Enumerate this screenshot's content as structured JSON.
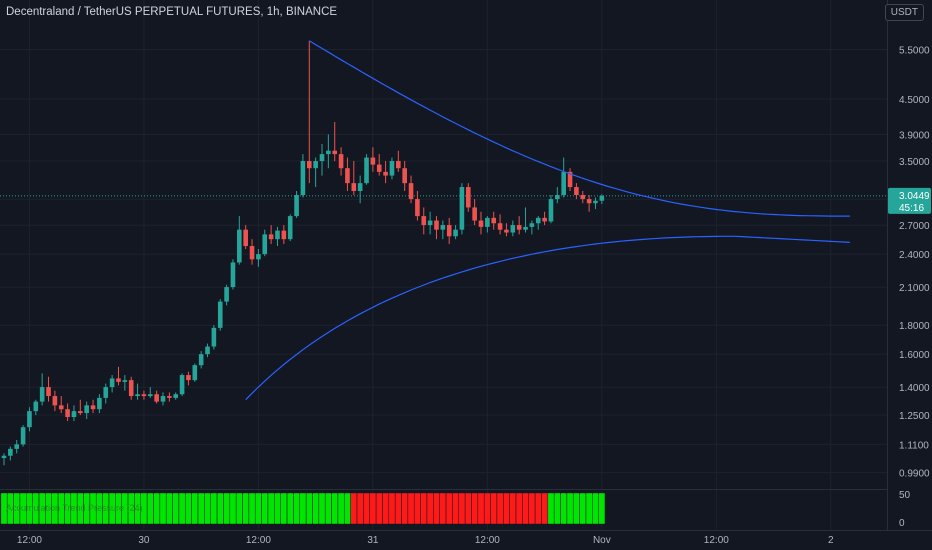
{
  "header": {
    "title": "Decentraland / TetherUS PERPETUAL FUTURES, 1h, BINANCE",
    "currency_badge": "USDT"
  },
  "price_label": {
    "price": "3.0449",
    "countdown": "45:16"
  },
  "indicator": {
    "label": "Accumulation Trend Pressure (24)",
    "axis_ticks": [
      "50",
      "0"
    ]
  },
  "colors": {
    "background": "#131722",
    "up": "#26a69a",
    "down": "#ef5350",
    "curve": "#2962ff",
    "hist_green": "#00e600",
    "hist_red": "#ff1a1a",
    "price_line": "#26a69a"
  },
  "chart_data": {
    "type": "candlestick",
    "title": "Decentraland / TetherUS PERPETUAL FUTURES, 1h, BINANCE",
    "y_scale": "log",
    "ylim": [
      0.93,
      6.2
    ],
    "y_ticks": [
      "5.5000",
      "4.5000",
      "3.9000",
      "3.5000",
      "3.0000",
      "2.7000",
      "2.4000",
      "2.1000",
      "1.8000",
      "1.6000",
      "1.4000",
      "1.2500",
      "1.1100",
      "0.9900"
    ],
    "x_tick_labels": [
      {
        "label": "12:00",
        "index": 4
      },
      {
        "label": "30",
        "index": 22
      },
      {
        "label": "12:00",
        "index": 40
      },
      {
        "label": "31",
        "index": 58
      },
      {
        "label": "12:00",
        "index": 76
      },
      {
        "label": "Nov",
        "index": 94
      },
      {
        "label": "12:00",
        "index": 112
      },
      {
        "label": "2",
        "index": 130
      }
    ],
    "candles": [
      [
        1.05,
        1.07,
        1.02,
        1.06
      ],
      [
        1.06,
        1.1,
        1.04,
        1.09
      ],
      [
        1.09,
        1.13,
        1.07,
        1.11
      ],
      [
        1.11,
        1.2,
        1.1,
        1.19
      ],
      [
        1.19,
        1.29,
        1.17,
        1.27
      ],
      [
        1.27,
        1.33,
        1.25,
        1.32
      ],
      [
        1.32,
        1.48,
        1.3,
        1.4
      ],
      [
        1.4,
        1.46,
        1.32,
        1.35
      ],
      [
        1.35,
        1.38,
        1.27,
        1.3
      ],
      [
        1.3,
        1.35,
        1.26,
        1.28
      ],
      [
        1.28,
        1.31,
        1.22,
        1.24
      ],
      [
        1.24,
        1.3,
        1.22,
        1.27
      ],
      [
        1.27,
        1.33,
        1.25,
        1.26
      ],
      [
        1.26,
        1.32,
        1.23,
        1.3
      ],
      [
        1.3,
        1.33,
        1.26,
        1.28
      ],
      [
        1.28,
        1.36,
        1.26,
        1.34
      ],
      [
        1.34,
        1.42,
        1.31,
        1.4
      ],
      [
        1.4,
        1.47,
        1.37,
        1.45
      ],
      [
        1.45,
        1.52,
        1.41,
        1.43
      ],
      [
        1.43,
        1.47,
        1.38,
        1.44
      ],
      [
        1.44,
        1.46,
        1.33,
        1.35
      ],
      [
        1.35,
        1.42,
        1.33,
        1.36
      ],
      [
        1.36,
        1.38,
        1.33,
        1.35
      ],
      [
        1.35,
        1.4,
        1.34,
        1.36
      ],
      [
        1.36,
        1.38,
        1.31,
        1.32
      ],
      [
        1.32,
        1.37,
        1.3,
        1.35
      ],
      [
        1.35,
        1.37,
        1.32,
        1.34
      ],
      [
        1.34,
        1.37,
        1.33,
        1.36
      ],
      [
        1.36,
        1.48,
        1.35,
        1.47
      ],
      [
        1.47,
        1.49,
        1.41,
        1.44
      ],
      [
        1.44,
        1.54,
        1.43,
        1.53
      ],
      [
        1.53,
        1.62,
        1.51,
        1.6
      ],
      [
        1.6,
        1.67,
        1.58,
        1.65
      ],
      [
        1.65,
        1.8,
        1.63,
        1.78
      ],
      [
        1.78,
        2.0,
        1.76,
        1.98
      ],
      [
        1.98,
        2.12,
        1.95,
        2.1
      ],
      [
        2.1,
        2.35,
        2.08,
        2.32
      ],
      [
        2.32,
        2.8,
        2.3,
        2.65
      ],
      [
        2.65,
        2.7,
        2.45,
        2.48
      ],
      [
        2.48,
        2.55,
        2.3,
        2.35
      ],
      [
        2.35,
        2.45,
        2.28,
        2.4
      ],
      [
        2.4,
        2.65,
        2.38,
        2.6
      ],
      [
        2.6,
        2.7,
        2.5,
        2.55
      ],
      [
        2.55,
        2.68,
        2.48,
        2.64
      ],
      [
        2.64,
        2.7,
        2.5,
        2.55
      ],
      [
        2.55,
        2.82,
        2.53,
        2.8
      ],
      [
        2.8,
        3.1,
        2.78,
        3.05
      ],
      [
        3.05,
        3.6,
        3.02,
        3.5
      ],
      [
        3.5,
        5.7,
        3.2,
        3.4
      ],
      [
        3.4,
        3.55,
        3.15,
        3.5
      ],
      [
        3.5,
        3.75,
        3.3,
        3.6
      ],
      [
        3.6,
        3.9,
        3.4,
        3.65
      ],
      [
        3.65,
        4.1,
        3.5,
        3.6
      ],
      [
        3.6,
        3.7,
        3.3,
        3.4
      ],
      [
        3.4,
        3.55,
        3.1,
        3.2
      ],
      [
        3.2,
        3.5,
        3.05,
        3.1
      ],
      [
        3.1,
        3.3,
        2.95,
        3.2
      ],
      [
        3.2,
        3.6,
        3.18,
        3.55
      ],
      [
        3.55,
        3.7,
        3.35,
        3.45
      ],
      [
        3.45,
        3.6,
        3.3,
        3.35
      ],
      [
        3.35,
        3.5,
        3.2,
        3.3
      ],
      [
        3.3,
        3.55,
        3.25,
        3.5
      ],
      [
        3.5,
        3.65,
        3.35,
        3.4
      ],
      [
        3.4,
        3.5,
        3.1,
        3.2
      ],
      [
        3.2,
        3.3,
        2.95,
        3.0
      ],
      [
        3.0,
        3.1,
        2.75,
        2.8
      ],
      [
        2.8,
        2.9,
        2.6,
        2.7
      ],
      [
        2.7,
        2.85,
        2.6,
        2.75
      ],
      [
        2.75,
        2.8,
        2.55,
        2.65
      ],
      [
        2.65,
        2.75,
        2.55,
        2.7
      ],
      [
        2.7,
        2.78,
        2.5,
        2.58
      ],
      [
        2.58,
        2.7,
        2.55,
        2.65
      ],
      [
        2.65,
        3.2,
        2.6,
        3.15
      ],
      [
        3.15,
        3.2,
        2.85,
        2.9
      ],
      [
        2.9,
        3.0,
        2.7,
        2.75
      ],
      [
        2.75,
        2.85,
        2.6,
        2.68
      ],
      [
        2.68,
        2.8,
        2.62,
        2.78
      ],
      [
        2.78,
        2.85,
        2.65,
        2.72
      ],
      [
        2.72,
        2.82,
        2.6,
        2.65
      ],
      [
        2.65,
        2.72,
        2.58,
        2.62
      ],
      [
        2.62,
        2.75,
        2.58,
        2.7
      ],
      [
        2.7,
        2.8,
        2.6,
        2.65
      ],
      [
        2.65,
        2.9,
        2.62,
        2.68
      ],
      [
        2.68,
        2.75,
        2.6,
        2.72
      ],
      [
        2.72,
        2.8,
        2.65,
        2.78
      ],
      [
        2.78,
        2.85,
        2.7,
        2.74
      ],
      [
        2.74,
        3.05,
        2.72,
        3.0
      ],
      [
        3.0,
        3.15,
        2.95,
        3.05
      ],
      [
        3.05,
        3.55,
        3.02,
        3.35
      ],
      [
        3.35,
        3.4,
        3.1,
        3.15
      ],
      [
        3.15,
        3.2,
        3.0,
        3.05
      ],
      [
        3.05,
        3.1,
        2.95,
        3.0
      ],
      [
        3.0,
        3.05,
        2.85,
        2.95
      ],
      [
        2.95,
        3.02,
        2.88,
        2.98
      ],
      [
        2.98,
        3.06,
        2.94,
        3.04
      ]
    ],
    "curves": [
      "upper wedge line",
      "lower wedge line"
    ],
    "indicator_histogram": {
      "label": "Accumulation Trend Pressure (24)",
      "ylim": [
        0,
        100
      ],
      "green_count": 55,
      "red_count": 31,
      "trailing_green_count": 9,
      "value": 50
    }
  }
}
